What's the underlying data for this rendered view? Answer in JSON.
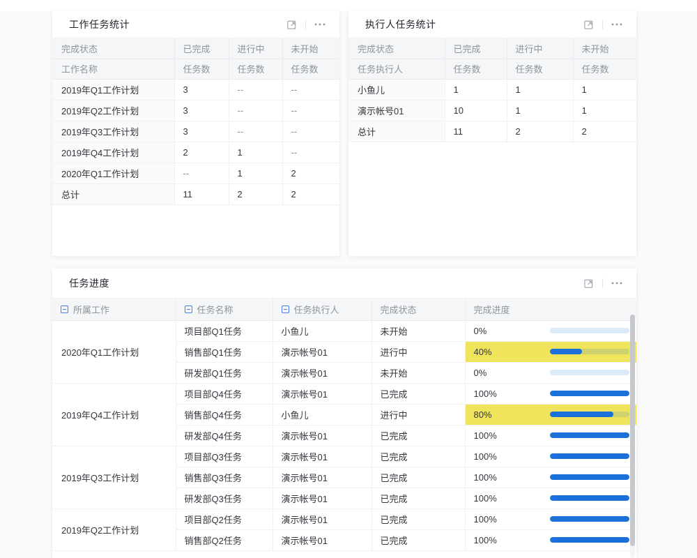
{
  "colors": {
    "accent_blue": "#1b70d9",
    "progress_track": "rgba(27,112,217,0.15)",
    "highlight_yellow": "#efe45c",
    "collapse_icon_blue": "#4a7bf0"
  },
  "panels": {
    "work_stats": {
      "title": "工作任务统计",
      "header_row1": [
        "完成状态",
        "已完成",
        "进行中",
        "未开始"
      ],
      "header_row2": [
        "工作名称",
        "任务数",
        "任务数",
        "任务数"
      ],
      "rows": [
        [
          "2019年Q1工作计划",
          "3",
          "--",
          "--"
        ],
        [
          "2019年Q2工作计划",
          "3",
          "--",
          "--"
        ],
        [
          "2019年Q3工作计划",
          "3",
          "--",
          "--"
        ],
        [
          "2019年Q4工作计划",
          "2",
          "1",
          "--"
        ],
        [
          "2020年Q1工作计划",
          "--",
          "1",
          "2"
        ],
        [
          "总计",
          "11",
          "2",
          "2"
        ]
      ]
    },
    "executor_stats": {
      "title": "执行人任务统计",
      "header_row1": [
        "完成状态",
        "已完成",
        "进行中",
        "未开始"
      ],
      "header_row2": [
        "任务执行人",
        "任务数",
        "任务数",
        "任务数"
      ],
      "rows": [
        [
          "小鱼儿",
          "1",
          "1",
          "1"
        ],
        [
          "演示帐号01",
          "10",
          "1",
          "1"
        ],
        [
          "总计",
          "11",
          "2",
          "2"
        ]
      ]
    },
    "task_progress": {
      "title": "任务进度",
      "columns": [
        {
          "label": "所属工作",
          "collapsible": true
        },
        {
          "label": "任务名称",
          "collapsible": true
        },
        {
          "label": "任务执行人",
          "collapsible": true
        },
        {
          "label": "完成状态",
          "collapsible": false
        },
        {
          "label": "完成进度",
          "collapsible": false
        }
      ],
      "groups": [
        {
          "name": "2020年Q1工作计划",
          "tasks": [
            {
              "task": "项目部Q1任务",
              "executor": "小鱼儿",
              "status": "未开始",
              "progress": "0%",
              "pct": 0,
              "highlight": false
            },
            {
              "task": "销售部Q1任务",
              "executor": "演示帐号01",
              "status": "进行中",
              "progress": "40%",
              "pct": 40,
              "highlight": true
            },
            {
              "task": "研发部Q1任务",
              "executor": "演示帐号01",
              "status": "未开始",
              "progress": "0%",
              "pct": 0,
              "highlight": false
            }
          ]
        },
        {
          "name": "2019年Q4工作计划",
          "tasks": [
            {
              "task": "项目部Q4任务",
              "executor": "演示帐号01",
              "status": "已完成",
              "progress": "100%",
              "pct": 100,
              "highlight": false
            },
            {
              "task": "销售部Q4任务",
              "executor": "小鱼儿",
              "status": "进行中",
              "progress": "80%",
              "pct": 80,
              "highlight": true
            },
            {
              "task": "研发部Q4任务",
              "executor": "演示帐号01",
              "status": "已完成",
              "progress": "100%",
              "pct": 100,
              "highlight": false
            }
          ]
        },
        {
          "name": "2019年Q3工作计划",
          "tasks": [
            {
              "task": "项目部Q3任务",
              "executor": "演示帐号01",
              "status": "已完成",
              "progress": "100%",
              "pct": 100,
              "highlight": false
            },
            {
              "task": "销售部Q3任务",
              "executor": "演示帐号01",
              "status": "已完成",
              "progress": "100%",
              "pct": 100,
              "highlight": false
            },
            {
              "task": "研发部Q3任务",
              "executor": "演示帐号01",
              "status": "已完成",
              "progress": "100%",
              "pct": 100,
              "highlight": false
            }
          ]
        },
        {
          "name": "2019年Q2工作计划",
          "tasks": [
            {
              "task": "项目部Q2任务",
              "executor": "演示帐号01",
              "status": "已完成",
              "progress": "100%",
              "pct": 100,
              "highlight": false
            },
            {
              "task": "销售部Q2任务",
              "executor": "演示帐号01",
              "status": "已完成",
              "progress": "100%",
              "pct": 100,
              "highlight": false
            }
          ]
        }
      ]
    }
  }
}
